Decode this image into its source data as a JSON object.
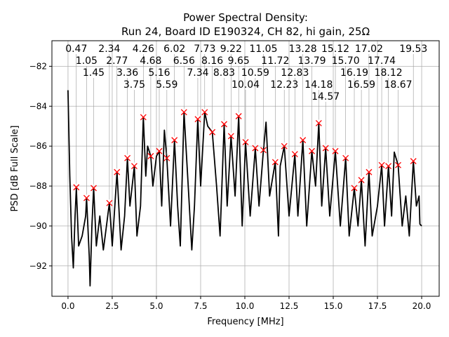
{
  "chart_data": {
    "type": "line",
    "title_line1": "Power Spectral Density:",
    "title_line2": "Run 24, Board ID E190324, CH 82, hi gain, 25Ω",
    "xlabel": "Frequency [MHz]",
    "ylabel": "PSD [dB Full Scale]",
    "xlim": [
      -0.91,
      20.99
    ],
    "ylim": [
      -93.52,
      -80.72
    ],
    "xticks": [
      0.0,
      2.5,
      5.0,
      7.5,
      10.0,
      12.5,
      15.0,
      17.5,
      20.0
    ],
    "xtick_labels": [
      "0.0",
      "2.5",
      "5.0",
      "7.5",
      "10.0",
      "12.5",
      "15.0",
      "17.5",
      "20.0"
    ],
    "yticks": [
      -92,
      -90,
      -88,
      -86,
      -84,
      -82
    ],
    "ytick_labels": [
      "−92",
      "−90",
      "−88",
      "−86",
      "−84",
      "−82"
    ],
    "grid": true,
    "line_color": "#000000",
    "marker_color": "#ff0000",
    "series": [
      {
        "x": [
          0.0,
          0.1,
          0.2,
          0.3,
          0.4,
          0.47,
          0.6,
          0.8,
          1.0,
          1.05,
          1.2,
          1.25,
          1.35,
          1.45,
          1.6,
          1.8,
          2.0,
          2.1,
          2.34,
          2.5,
          2.77,
          3.0,
          3.2,
          3.36,
          3.5,
          3.75,
          3.9,
          4.1,
          4.26,
          4.4,
          4.5,
          4.68,
          4.8,
          5.0,
          5.16,
          5.3,
          5.45,
          5.59,
          5.8,
          6.02,
          6.2,
          6.35,
          6.56,
          6.8,
          7.0,
          7.15,
          7.34,
          7.5,
          7.73,
          7.9,
          8.16,
          8.4,
          8.6,
          8.83,
          9.0,
          9.22,
          9.45,
          9.65,
          9.85,
          10.04,
          10.3,
          10.59,
          10.8,
          11.05,
          11.2,
          11.4,
          11.72,
          11.9,
          12.0,
          12.23,
          12.5,
          12.83,
          13.0,
          13.28,
          13.5,
          13.79,
          14.0,
          14.18,
          14.35,
          14.57,
          14.8,
          15.12,
          15.4,
          15.7,
          15.9,
          16.19,
          16.4,
          16.59,
          16.8,
          17.02,
          17.2,
          17.5,
          17.74,
          17.9,
          18.12,
          18.3,
          18.45,
          18.67,
          18.9,
          19.1,
          19.3,
          19.53,
          19.7,
          19.85,
          19.9,
          20.0
        ],
        "y": [
          -83.2,
          -87.5,
          -90.5,
          -92.1,
          -89.5,
          -88.1,
          -91.0,
          -90.5,
          -89.5,
          -88.6,
          -91.5,
          -93.0,
          -90.0,
          -88.1,
          -91.0,
          -89.5,
          -91.2,
          -90.5,
          -88.85,
          -91.0,
          -87.3,
          -91.2,
          -89.5,
          -86.6,
          -89.0,
          -87.0,
          -90.5,
          -89.0,
          -84.55,
          -87.5,
          -86.0,
          -86.5,
          -88.0,
          -86.5,
          -86.25,
          -89.0,
          -85.2,
          -86.6,
          -90.0,
          -85.7,
          -89.0,
          -91.0,
          -84.3,
          -88.0,
          -91.2,
          -89.0,
          -84.65,
          -88.0,
          -84.3,
          -85.0,
          -85.3,
          -88.0,
          -90.5,
          -84.9,
          -89.0,
          -85.5,
          -88.5,
          -84.5,
          -90.0,
          -85.8,
          -89.5,
          -86.1,
          -89.0,
          -86.2,
          -84.8,
          -88.5,
          -86.8,
          -90.5,
          -87.0,
          -86.0,
          -89.5,
          -86.4,
          -89.5,
          -85.7,
          -90.0,
          -86.25,
          -88.0,
          -84.85,
          -89.0,
          -86.1,
          -89.5,
          -86.25,
          -90.0,
          -86.6,
          -90.5,
          -88.1,
          -90.0,
          -87.7,
          -91.0,
          -87.3,
          -90.5,
          -89.0,
          -86.95,
          -90.0,
          -87.0,
          -89.5,
          -86.3,
          -86.95,
          -90.0,
          -88.5,
          -90.5,
          -86.75,
          -89.0,
          -88.5,
          -89.9,
          -90.0
        ]
      }
    ],
    "peaks": {
      "x": [
        0.47,
        1.05,
        1.45,
        2.34,
        2.77,
        3.36,
        3.75,
        4.26,
        4.68,
        5.16,
        5.59,
        6.02,
        6.56,
        7.34,
        7.73,
        8.16,
        8.83,
        9.22,
        9.65,
        10.04,
        10.59,
        11.05,
        11.72,
        12.23,
        12.83,
        13.28,
        13.79,
        14.18,
        14.57,
        15.12,
        15.7,
        16.19,
        16.59,
        17.02,
        17.74,
        18.12,
        18.67,
        19.53
      ],
      "y": [
        -88.06,
        -88.6,
        -88.1,
        -88.85,
        -87.3,
        -86.6,
        -87.0,
        -84.55,
        -86.5,
        -86.25,
        -86.6,
        -85.7,
        -84.3,
        -84.65,
        -84.3,
        -85.3,
        -84.9,
        -85.5,
        -84.5,
        -85.8,
        -86.1,
        -86.2,
        -86.8,
        -86.0,
        -86.4,
        -85.7,
        -86.25,
        -84.85,
        -86.1,
        -86.25,
        -86.6,
        -88.1,
        -87.7,
        -87.3,
        -86.95,
        -87.0,
        -86.95,
        -86.75
      ],
      "labels": [
        "0.47",
        "1.05",
        "1.45",
        "2.34",
        "2.77",
        "3.36",
        "3.75",
        "4.26",
        "4.68",
        "5.16",
        "5.59",
        "6.02",
        "6.56",
        "7.34",
        "7.73",
        "8.16",
        "8.83",
        "9.22",
        "9.65",
        "10.04",
        "10.59",
        "11.05",
        "11.72",
        "12.23",
        "12.83",
        "13.28",
        "13.79",
        "14.18",
        "14.57",
        "15.12",
        "15.70",
        "16.19",
        "16.59",
        "17.02",
        "17.74",
        "18.12",
        "18.67",
        "19.53"
      ]
    }
  }
}
